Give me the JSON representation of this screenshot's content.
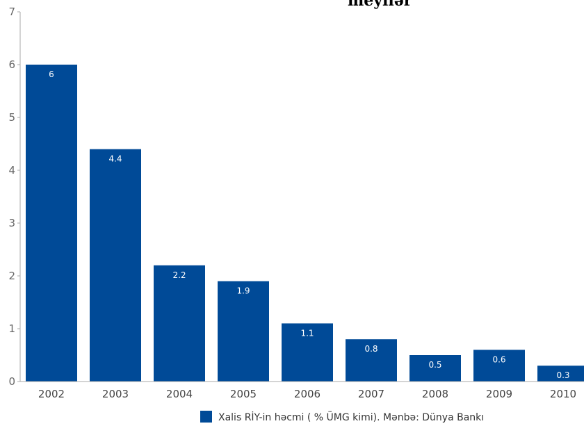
{
  "chart_data": {
    "type": "bar",
    "title": "meyllər",
    "categories": [
      "2002",
      "2003",
      "2004",
      "2005",
      "2006",
      "2007",
      "2008",
      "2009",
      "2010"
    ],
    "values": [
      6,
      4.4,
      2.2,
      1.9,
      1.1,
      0.8,
      0.5,
      0.6,
      0.3
    ],
    "data_labels": [
      "6",
      "4.4",
      "2.2",
      "1.9",
      "1.1",
      "0.8",
      "0.5",
      "0.6",
      "0.3"
    ],
    "ylim": [
      0,
      7
    ],
    "yticks": [
      "0",
      "1",
      "2",
      "3",
      "4",
      "5",
      "6",
      "7"
    ],
    "grid": false,
    "legend": {
      "position": "bottom-right",
      "label": "Xalis RİY-in həcmi ( % ÜMG kimi). Mənbə: Dünya Bankı"
    },
    "colors": {
      "bar": "#004a97",
      "axis": "#aaaaaa"
    }
  }
}
